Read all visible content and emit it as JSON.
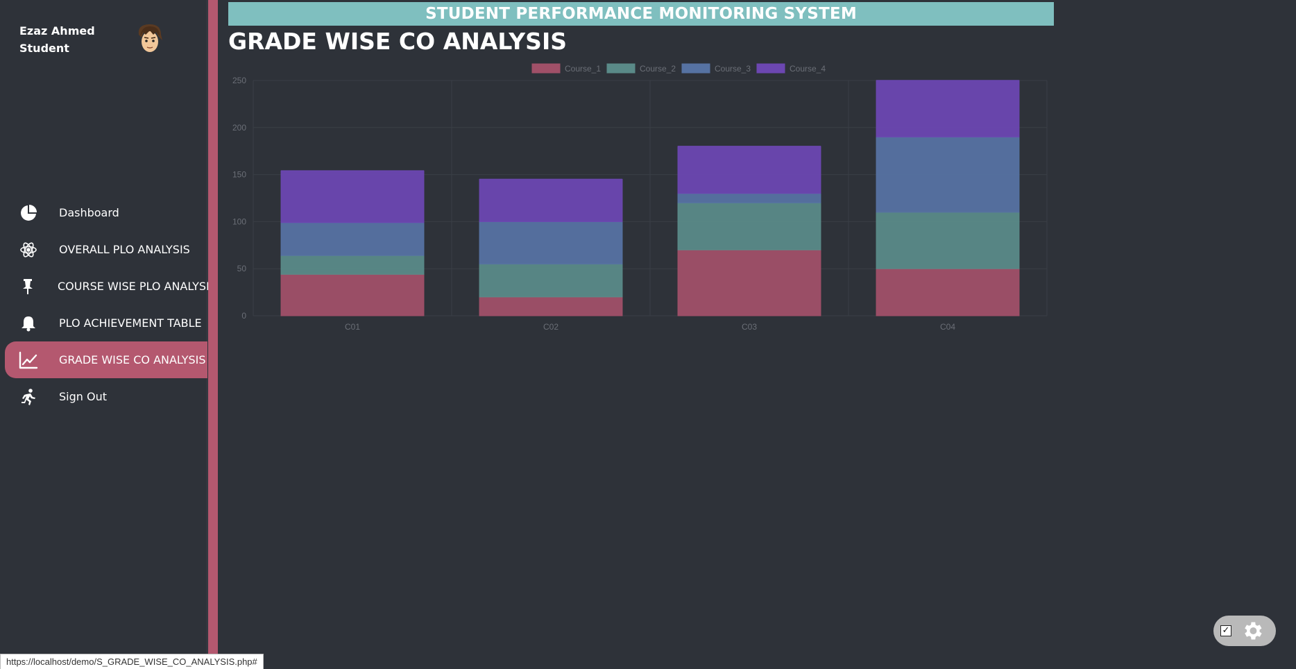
{
  "profile": {
    "name": "Ezaz Ahmed",
    "role": "Student"
  },
  "header": {
    "banner": "STUDENT PERFORMANCE MONITORING SYSTEM",
    "page_title": "GRADE WISE CO ANALYSIS"
  },
  "sidebar": {
    "items": [
      {
        "label": "Dashboard",
        "icon": "pie-chart-icon",
        "active": false
      },
      {
        "label": "OVERALL PLO ANALYSIS",
        "icon": "atom-icon",
        "active": false
      },
      {
        "label": "COURSE WISE PLO ANALYSIS",
        "icon": "pin-icon",
        "active": false
      },
      {
        "label": "PLO ACHIEVEMENT TABLE",
        "icon": "bell-icon",
        "active": false
      },
      {
        "label": "GRADE WISE CO ANALYSIS",
        "icon": "line-chart-icon",
        "active": true
      },
      {
        "label": "Sign Out",
        "icon": "running-person-icon",
        "active": false
      }
    ]
  },
  "colors": {
    "background": "#2e3239",
    "accent": "#b4586f",
    "banner": "#7fbfbf"
  },
  "chart_data": {
    "type": "bar",
    "stacked": true,
    "categories": [
      "C01",
      "C02",
      "C03",
      "C04"
    ],
    "series": [
      {
        "name": "Course_1",
        "color": "#a05068",
        "values": [
          44,
          20,
          70,
          50
        ]
      },
      {
        "name": "Course_2",
        "color": "#5a8a88",
        "values": [
          20,
          35,
          50,
          60
        ]
      },
      {
        "name": "Course_3",
        "color": "#5672a2",
        "values": [
          35,
          45,
          10,
          80
        ]
      },
      {
        "name": "Course_4",
        "color": "#6c47b1",
        "values": [
          55,
          45,
          50,
          60
        ]
      }
    ],
    "ylim": [
      0,
      250
    ],
    "yticks": [
      0,
      50,
      100,
      150,
      200,
      250
    ],
    "legend": "top-center",
    "grid": true
  },
  "statusbar": {
    "url": "https://localhost/demo/S_GRADE_WISE_CO_ANALYSIS.php#"
  }
}
